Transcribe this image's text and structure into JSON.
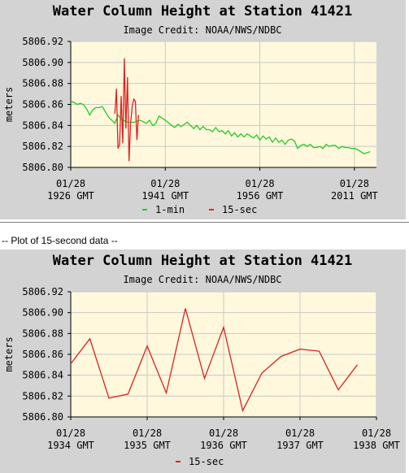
{
  "section_divider": "-- Plot of 15-second data --",
  "chart_data": [
    {
      "type": "line",
      "title": "Water Column Height at Station 41421",
      "subtitle": "Image Credit: NOAA/NWS/NDBC",
      "ylabel": "meters",
      "xlabel": "",
      "ylim": [
        5806.8,
        5806.92
      ],
      "y_ticks": [
        "5806.92",
        "5806.90",
        "5806.88",
        "5806.86",
        "5806.84",
        "5806.82",
        "5806.80"
      ],
      "x_ticks": [
        {
          "t": 0,
          "line1": "01/28",
          "line2": "1926 GMT"
        },
        {
          "t": 15,
          "line1": "01/28",
          "line2": "1941 GMT"
        },
        {
          "t": 30,
          "line1": "01/28",
          "line2": "1956 GMT"
        },
        {
          "t": 45,
          "line1": "01/28",
          "line2": "2011 GMT"
        }
      ],
      "xlim": [
        0,
        48.5
      ],
      "grid": true,
      "legend": "bottom",
      "series": [
        {
          "name": "1-min",
          "color": "#22cc22",
          "points": [
            [
              0,
              5806.863
            ],
            [
              0.5,
              5806.862
            ],
            [
              1,
              5806.86
            ],
            [
              1.5,
              5806.861
            ],
            [
              2,
              5806.86
            ],
            [
              2.5,
              5806.856
            ],
            [
              3,
              5806.85
            ],
            [
              3.5,
              5806.855
            ],
            [
              4,
              5806.857
            ],
            [
              4.5,
              5806.857
            ],
            [
              5,
              5806.858
            ],
            [
              5.5,
              5806.853
            ],
            [
              6,
              5806.848
            ],
            [
              6.5,
              5806.845
            ],
            [
              7,
              5806.842
            ],
            [
              7.5,
              5806.85
            ],
            [
              8,
              5806.846
            ],
            [
              9,
              5806.843
            ],
            [
              10,
              5806.843
            ],
            [
              11,
              5806.845
            ],
            [
              12,
              5806.842
            ],
            [
              12.5,
              5806.845
            ],
            [
              13,
              5806.84
            ],
            [
              13.5,
              5806.842
            ],
            [
              14,
              5806.849
            ],
            [
              15,
              5806.845
            ],
            [
              16,
              5806.84
            ],
            [
              16.5,
              5806.838
            ],
            [
              17,
              5806.841
            ],
            [
              17.5,
              5806.839
            ],
            [
              18,
              5806.841
            ],
            [
              18.5,
              5806.843
            ],
            [
              19,
              5806.84
            ],
            [
              19.5,
              5806.837
            ],
            [
              20,
              5806.84
            ],
            [
              20.5,
              5806.836
            ],
            [
              21,
              5806.839
            ],
            [
              21.5,
              5806.836
            ],
            [
              22,
              5806.836
            ],
            [
              22.5,
              5806.834
            ],
            [
              23,
              5806.838
            ],
            [
              23.5,
              5806.834
            ],
            [
              24,
              5806.835
            ],
            [
              24.5,
              5806.832
            ],
            [
              25,
              5806.835
            ],
            [
              25.5,
              5806.83
            ],
            [
              26,
              5806.833
            ],
            [
              26.5,
              5806.829
            ],
            [
              27,
              5806.832
            ],
            [
              27.5,
              5806.829
            ],
            [
              28,
              5806.832
            ],
            [
              28.5,
              5806.83
            ],
            [
              29,
              5806.828
            ],
            [
              29.5,
              5806.831
            ],
            [
              30,
              5806.826
            ],
            [
              30.5,
              5806.83
            ],
            [
              31,
              5806.827
            ],
            [
              31.5,
              5806.829
            ],
            [
              32,
              5806.824
            ],
            [
              32.5,
              5806.828
            ],
            [
              33,
              5806.824
            ],
            [
              33.5,
              5806.826
            ],
            [
              34,
              5806.822
            ],
            [
              34.5,
              5806.826
            ],
            [
              35,
              5806.827
            ],
            [
              35.5,
              5806.825
            ],
            [
              36,
              5806.818
            ],
            [
              36.5,
              5806.821
            ],
            [
              37,
              5806.822
            ],
            [
              37.5,
              5806.82
            ],
            [
              38,
              5806.822
            ],
            [
              38.5,
              5806.819
            ],
            [
              39,
              5806.819
            ],
            [
              39.5,
              5806.82
            ],
            [
              40,
              5806.818
            ],
            [
              40.5,
              5806.822
            ],
            [
              41,
              5806.82
            ],
            [
              41.5,
              5806.821
            ],
            [
              42,
              5806.821
            ],
            [
              42.5,
              5806.818
            ],
            [
              43,
              5806.82
            ],
            [
              43.5,
              5806.819
            ],
            [
              44,
              5806.819
            ],
            [
              44.5,
              5806.818
            ],
            [
              45,
              5806.818
            ],
            [
              45.5,
              5806.817
            ],
            [
              46,
              5806.815
            ],
            [
              46.5,
              5806.813
            ],
            [
              47,
              5806.814
            ],
            [
              47.5,
              5806.815
            ]
          ]
        },
        {
          "name": "15-sec",
          "color": "#dd2222",
          "points": [
            [
              7.0,
              5806.851
            ],
            [
              7.25,
              5806.875
            ],
            [
              7.5,
              5806.818
            ],
            [
              7.75,
              5806.822
            ],
            [
              8.0,
              5806.868
            ],
            [
              8.25,
              5806.823
            ],
            [
              8.5,
              5806.904
            ],
            [
              8.75,
              5806.837
            ],
            [
              9.0,
              5806.886
            ],
            [
              9.25,
              5806.806
            ],
            [
              9.5,
              5806.842
            ],
            [
              9.75,
              5806.858
            ],
            [
              10.0,
              5806.865
            ],
            [
              10.25,
              5806.863
            ],
            [
              10.5,
              5806.826
            ],
            [
              10.75,
              5806.85
            ]
          ]
        }
      ]
    },
    {
      "type": "line",
      "title": "Water Column Height at Station 41421",
      "subtitle": "Image Credit: NOAA/NWS/NDBC",
      "ylabel": "meters",
      "xlabel": "",
      "ylim": [
        5806.8,
        5806.92
      ],
      "y_ticks": [
        "5806.92",
        "5806.90",
        "5806.88",
        "5806.86",
        "5806.84",
        "5806.82",
        "5806.80"
      ],
      "x_ticks": [
        {
          "t": 0,
          "line1": "01/28",
          "line2": "1934 GMT"
        },
        {
          "t": 1,
          "line1": "01/28",
          "line2": "1935 GMT"
        },
        {
          "t": 2,
          "line1": "01/28",
          "line2": "1936 GMT"
        },
        {
          "t": 3,
          "line1": "01/28",
          "line2": "1937 GMT"
        },
        {
          "t": 4,
          "line1": "01/28",
          "line2": "1938 GMT"
        }
      ],
      "xlim": [
        0,
        4
      ],
      "grid": true,
      "legend": "bottom",
      "series": [
        {
          "name": "15-sec",
          "color": "#dd2222",
          "points": [
            [
              0.0,
              5806.851
            ],
            [
              0.25,
              5806.875
            ],
            [
              0.5,
              5806.818
            ],
            [
              0.75,
              5806.822
            ],
            [
              1.0,
              5806.868
            ],
            [
              1.25,
              5806.823
            ],
            [
              1.5,
              5806.904
            ],
            [
              1.75,
              5806.837
            ],
            [
              2.0,
              5806.886
            ],
            [
              2.25,
              5806.806
            ],
            [
              2.5,
              5806.842
            ],
            [
              2.75,
              5806.858
            ],
            [
              3.0,
              5806.865
            ],
            [
              3.25,
              5806.863
            ],
            [
              3.5,
              5806.826
            ],
            [
              3.75,
              5806.85
            ]
          ]
        }
      ]
    }
  ]
}
